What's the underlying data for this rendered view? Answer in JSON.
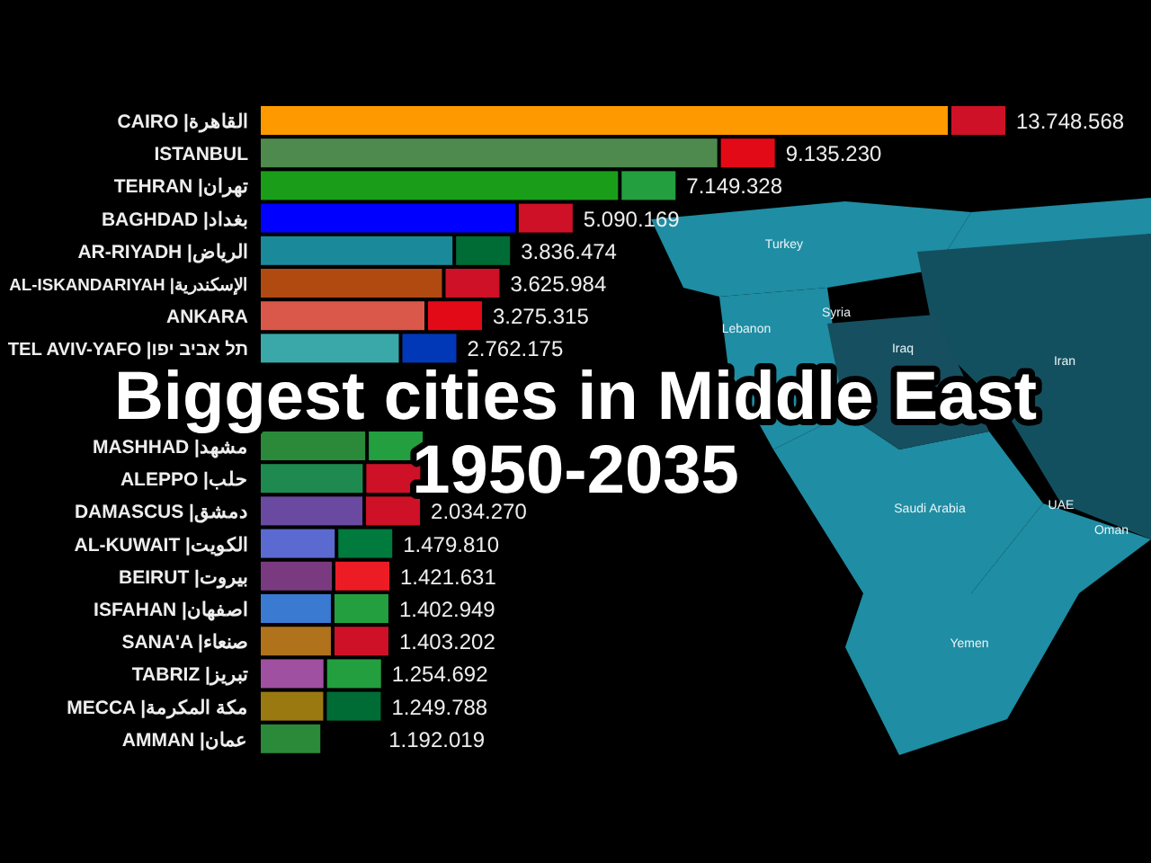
{
  "chart_data": {
    "type": "bar",
    "orientation": "horizontal",
    "title": "Biggest cities in Middle East",
    "subtitle": "1950-2035",
    "categories": [
      "CAIRO |القاهرة",
      "ISTANBUL",
      "TEHRAN |تهران",
      "BAGHDAD |بغداد",
      "AR-RIYADH |الرياض",
      "AL-ISKANDARIYAH |الإسكندرية",
      "ANKARA",
      "TEL AVIV-YAFO |תל אביב יפו",
      null,
      null,
      "MASHHAD |مشهد",
      "ALEPPO |حلب",
      "DAMASCUS |دمشق",
      "AL-KUWAIT |الكويت",
      "BEIRUT |بيروت",
      "ISFAHAN |اصفهان",
      "SANA'A |صنعاء",
      "TABRIZ |تبريز",
      "MECCA |مكة المكرمة",
      "AMMAN |عمان"
    ],
    "values": [
      13748568,
      9135230,
      7149328,
      5090169,
      3836474,
      3625984,
      3275315,
      2762175,
      null,
      null,
      2090000,
      2040000,
      2034270,
      1479810,
      1421631,
      1402949,
      1403202,
      1254692,
      1249788,
      1192019
    ],
    "value_labels": [
      "13.748.568",
      "9.135.230",
      "7.149.328",
      "5.090.169",
      "3.836.474",
      "3.625.984",
      "3.275.315",
      "2.762.175",
      null,
      null,
      null,
      null,
      "2.034.270",
      "1.479.810",
      "1.421.631",
      "1.402.949",
      "1.403.202",
      "1.254.692",
      "1.249.788",
      "1.192.019"
    ],
    "colors": [
      "#ff9900",
      "#4e8a4e",
      "#1a9e1a",
      "#0000ff",
      "#1a8a9a",
      "#b04a10",
      "#d9584a",
      "#3aa8a8",
      "#b04aa0",
      "#808080",
      "#2a8a3a",
      "#1f8a50",
      "#6a4aa0",
      "#5a6ad0",
      "#7a3a80",
      "#3a7ad0",
      "#b0721a",
      "#a050a0",
      "#9a7a10",
      "#2a8a3a"
    ],
    "annotations": [
      "Turkey",
      "Lebanon",
      "Syria",
      "Iraq",
      "Iran",
      "Saudi Arabia",
      "UAE",
      "Oman",
      "Yemen"
    ]
  }
}
